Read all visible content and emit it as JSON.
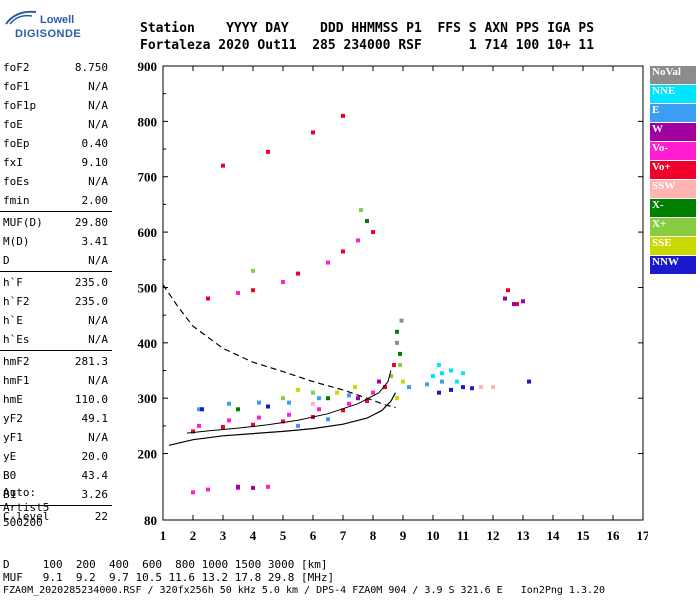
{
  "logo": {
    "line1": "Lowell",
    "line2": "DIGISONDE"
  },
  "header": {
    "labels": [
      "Station",
      "YYYY",
      "DAY",
      "DDD",
      "HHMMSS",
      "P1",
      "FFS",
      "S",
      "AXN",
      "PPS",
      "IGA",
      "PS"
    ],
    "values": [
      "Fortaleza",
      "2020",
      "Out11",
      "285",
      "234000",
      "RSF",
      "1",
      "714",
      "100",
      "10+",
      "11"
    ]
  },
  "params": [
    {
      "name": "foF2",
      "value": "8.750"
    },
    {
      "name": "foF1",
      "value": "N/A"
    },
    {
      "name": "foF1p",
      "value": "N/A"
    },
    {
      "name": "foE",
      "value": "N/A"
    },
    {
      "name": "foEp",
      "value": "0.40"
    },
    {
      "name": "fxI",
      "value": "9.10"
    },
    {
      "name": "foEs",
      "value": "N/A"
    },
    {
      "name": "fmin",
      "value": "2.00"
    },
    {
      "sep": true
    },
    {
      "name": "MUF(D)",
      "value": "29.80"
    },
    {
      "name": "M(D)",
      "value": "3.41"
    },
    {
      "name": "D",
      "value": "N/A"
    },
    {
      "sep": true
    },
    {
      "name": "h`F",
      "value": "235.0"
    },
    {
      "name": "h`F2",
      "value": "235.0"
    },
    {
      "name": "h`E",
      "value": "N/A"
    },
    {
      "name": "h`Es",
      "value": "N/A"
    },
    {
      "sep": true
    },
    {
      "name": "hmF2",
      "value": "281.3"
    },
    {
      "name": "hmF1",
      "value": "N/A"
    },
    {
      "name": "hmE",
      "value": "110.0"
    },
    {
      "name": "yF2",
      "value": "49.1"
    },
    {
      "name": "yF1",
      "value": "N/A"
    },
    {
      "name": "yE",
      "value": "20.0"
    },
    {
      "name": "B0",
      "value": "43.4"
    },
    {
      "name": "B1",
      "value": "3.26"
    },
    {
      "sep": true
    },
    {
      "name": "C-level",
      "value": "22"
    }
  ],
  "auto": {
    "line1": "Auto:",
    "line2": "Artist5",
    "line3": "500200"
  },
  "legend": [
    {
      "label": "NoVal",
      "color": "#8c8c8c"
    },
    {
      "label": "NNE",
      "color": "#00e5ff"
    },
    {
      "label": "E",
      "color": "#3d9df2"
    },
    {
      "label": "W",
      "color": "#a000a0"
    },
    {
      "label": "Vo-",
      "color": "#ff1fd0"
    },
    {
      "label": "Vo+",
      "color": "#f0002a"
    },
    {
      "label": "SSW",
      "color": "#ffb3b3"
    },
    {
      "label": "X-",
      "color": "#008000"
    },
    {
      "label": "X+",
      "color": "#88cc44"
    },
    {
      "label": "SSE",
      "color": "#c8d800"
    },
    {
      "label": "NNW",
      "color": "#1a1acc"
    }
  ],
  "bottom": {
    "d_row": "D     100  200  400  600  800 1000 1500 3000 [km]",
    "muf_row": "MUF   9.1  9.2  9.7 10.5 11.6 13.2 17.8 29.8 [MHz]"
  },
  "footer": "FZA0M_2020285234000.RSF / 320fx256h 50 kHz 5.0 km / DPS-4 FZA0M 904 / 3.9 S 321.6 E   Ion2Png 1.3.20",
  "chart_data": {
    "type": "scatter",
    "xlim": [
      1,
      17
    ],
    "ylim": [
      80,
      900
    ],
    "x_ticks": [
      "1",
      "2",
      "3",
      "4",
      "5",
      "6",
      "7",
      "8",
      "9",
      "10",
      "11",
      "12",
      "13",
      "14",
      "15",
      "16",
      "17"
    ],
    "y_ticks": [
      "80",
      "200",
      "300",
      "400",
      "500",
      "600",
      "700",
      "800",
      "900"
    ],
    "y_tick_values": [
      80,
      200,
      300,
      400,
      500,
      600,
      700,
      800,
      900
    ],
    "series": [
      {
        "name": "Vo+",
        "color": "#f0002a",
        "points": [
          [
            2.0,
            240
          ],
          [
            3.0,
            248
          ],
          [
            4.0,
            252
          ],
          [
            5.0,
            258
          ],
          [
            6.0,
            266
          ],
          [
            7.0,
            278
          ],
          [
            7.8,
            295
          ],
          [
            8.4,
            320
          ],
          [
            8.7,
            360
          ],
          [
            2.5,
            480
          ],
          [
            4.0,
            495
          ],
          [
            5.5,
            525
          ],
          [
            7.0,
            565
          ],
          [
            8.0,
            600
          ],
          [
            3.0,
            720
          ],
          [
            4.5,
            745
          ],
          [
            6.0,
            780
          ],
          [
            7.0,
            810
          ],
          [
            12.8,
            470
          ],
          [
            12.5,
            495
          ]
        ]
      },
      {
        "name": "Vo-",
        "color": "#ff1fd0",
        "points": [
          [
            2.2,
            250
          ],
          [
            3.2,
            260
          ],
          [
            4.2,
            265
          ],
          [
            5.2,
            270
          ],
          [
            6.2,
            280
          ],
          [
            7.2,
            290
          ],
          [
            8.0,
            310
          ],
          [
            8.6,
            340
          ],
          [
            2.0,
            130
          ],
          [
            2.5,
            135
          ],
          [
            3.5,
            138
          ],
          [
            4.5,
            140
          ],
          [
            3.5,
            490
          ],
          [
            5.0,
            510
          ],
          [
            6.5,
            545
          ],
          [
            7.5,
            585
          ]
        ]
      },
      {
        "name": "E",
        "color": "#3d9df2",
        "points": [
          [
            2.2,
            280
          ],
          [
            3.2,
            290
          ],
          [
            4.2,
            292
          ],
          [
            5.2,
            292
          ],
          [
            6.2,
            300
          ],
          [
            7.2,
            305
          ],
          [
            9.2,
            320
          ],
          [
            9.8,
            325
          ],
          [
            10.3,
            330
          ],
          [
            5.5,
            250
          ],
          [
            6.5,
            262
          ]
        ]
      },
      {
        "name": "NNE",
        "color": "#00e5ff",
        "points": [
          [
            10.0,
            340
          ],
          [
            10.3,
            345
          ],
          [
            10.6,
            350
          ],
          [
            11.0,
            345
          ],
          [
            10.2,
            360
          ],
          [
            10.8,
            330
          ]
        ]
      },
      {
        "name": "NNW",
        "color": "#1a1acc",
        "points": [
          [
            10.2,
            310
          ],
          [
            10.6,
            315
          ],
          [
            11.0,
            320
          ],
          [
            11.3,
            318
          ],
          [
            13.2,
            330
          ],
          [
            2.3,
            280
          ],
          [
            4.5,
            285
          ]
        ]
      },
      {
        "name": "W",
        "color": "#a000a0",
        "points": [
          [
            12.4,
            480
          ],
          [
            12.7,
            470
          ],
          [
            13.0,
            475
          ],
          [
            3.5,
            140
          ],
          [
            4.0,
            138
          ],
          [
            8.2,
            330
          ],
          [
            7.5,
            300
          ]
        ]
      },
      {
        "name": "X-",
        "color": "#008000",
        "points": [
          [
            8.9,
            380
          ],
          [
            8.8,
            420
          ],
          [
            7.8,
            620
          ],
          [
            3.5,
            280
          ],
          [
            6.5,
            300
          ]
        ]
      },
      {
        "name": "X+",
        "color": "#88cc44",
        "points": [
          [
            8.6,
            340
          ],
          [
            8.9,
            360
          ],
          [
            5.0,
            300
          ],
          [
            6.0,
            310
          ],
          [
            7.6,
            640
          ],
          [
            4.0,
            530
          ]
        ]
      },
      {
        "name": "SSE",
        "color": "#c8d800",
        "points": [
          [
            8.8,
            300
          ],
          [
            9.0,
            330
          ],
          [
            6.8,
            310
          ],
          [
            7.4,
            320
          ],
          [
            5.5,
            315
          ]
        ]
      },
      {
        "name": "NoVal",
        "color": "#8c8c8c",
        "points": [
          [
            8.8,
            400
          ],
          [
            8.95,
            440
          ]
        ]
      },
      {
        "name": "SSW",
        "color": "#ffb3b3",
        "points": [
          [
            11.6,
            320
          ],
          [
            12.0,
            320
          ],
          [
            6.0,
            290
          ]
        ]
      }
    ],
    "fitted_trace_solid": [
      [
        1.2,
        215
      ],
      [
        2,
        225
      ],
      [
        3,
        232
      ],
      [
        4,
        236
      ],
      [
        5,
        240
      ],
      [
        6,
        245
      ],
      [
        7,
        253
      ],
      [
        7.8,
        264
      ],
      [
        8.3,
        278
      ],
      [
        8.6,
        295
      ],
      [
        8.75,
        310
      ]
    ],
    "fitted_trace_dashed": [
      [
        1.0,
        505
      ],
      [
        1.5,
        465
      ],
      [
        2,
        430
      ],
      [
        3,
        390
      ],
      [
        4,
        365
      ],
      [
        5,
        348
      ],
      [
        6,
        330
      ],
      [
        7,
        315
      ],
      [
        7.8,
        300
      ],
      [
        8.4,
        288
      ],
      [
        8.75,
        283
      ]
    ],
    "upper_trace": [
      [
        1.8,
        237
      ],
      [
        2.5,
        241
      ],
      [
        3.5,
        246
      ],
      [
        4.5,
        252
      ],
      [
        5.5,
        260
      ],
      [
        6.5,
        272
      ],
      [
        7.5,
        290
      ],
      [
        8.2,
        310
      ],
      [
        8.5,
        330
      ],
      [
        8.6,
        350
      ]
    ]
  }
}
